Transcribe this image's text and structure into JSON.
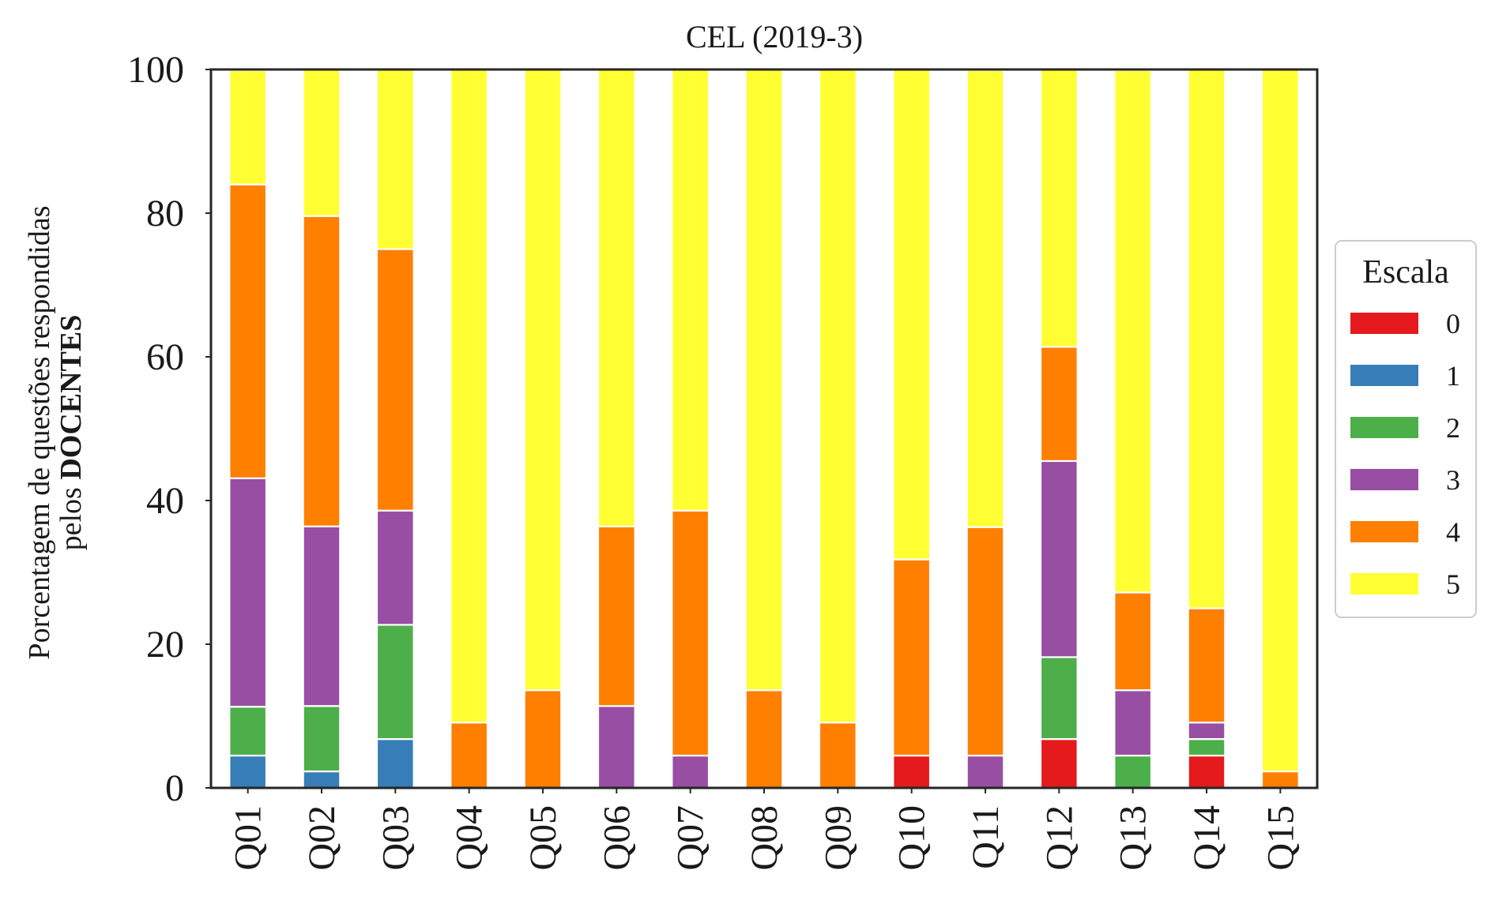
{
  "chart_data": {
    "type": "bar",
    "stacked": true,
    "title": "CEL (2019-3)",
    "xlabel": "",
    "ylabel_line1": "Porcentagem de questões respondidas",
    "ylabel_line2_prefix": "pelos ",
    "ylabel_line2_bold": "DOCENTES",
    "ylim": [
      0,
      100
    ],
    "yticks": [
      "0",
      "20",
      "40",
      "60",
      "80",
      "100"
    ],
    "grid": false,
    "legend_position": "right",
    "categories": [
      "Q01",
      "Q02",
      "Q03",
      "Q04",
      "Q05",
      "Q06",
      "Q07",
      "Q08",
      "Q09",
      "Q10",
      "Q11",
      "Q12",
      "Q13",
      "Q14",
      "Q15"
    ],
    "legend": {
      "title": "Escala"
    },
    "series": [
      {
        "name": "0",
        "color": "#e41a1c",
        "values": [
          0,
          0,
          0,
          0,
          0,
          0,
          0,
          0,
          0,
          4.5,
          0,
          6.8,
          0,
          4.5,
          0
        ]
      },
      {
        "name": "1",
        "color": "#377eb8",
        "values": [
          4.5,
          2.3,
          6.8,
          0,
          0,
          0,
          0,
          0,
          0,
          0,
          0,
          0,
          0,
          0,
          0
        ]
      },
      {
        "name": "2",
        "color": "#4daf4a",
        "values": [
          6.8,
          9.1,
          15.9,
          0,
          0,
          0,
          0,
          0,
          0,
          0,
          0,
          11.4,
          4.5,
          2.3,
          0
        ]
      },
      {
        "name": "3",
        "color": "#984ea3",
        "values": [
          31.8,
          25.0,
          15.9,
          0,
          0,
          11.4,
          4.5,
          0,
          0,
          0,
          4.5,
          27.3,
          9.1,
          2.3,
          0
        ]
      },
      {
        "name": "4",
        "color": "#ff7f00",
        "values": [
          40.9,
          43.2,
          36.4,
          9.1,
          13.6,
          25.0,
          34.1,
          13.6,
          9.1,
          27.3,
          31.8,
          15.9,
          13.6,
          15.9,
          2.3
        ]
      },
      {
        "name": "5",
        "color": "#ffff33",
        "values": [
          15.9,
          20.5,
          25.0,
          90.9,
          86.4,
          63.6,
          61.4,
          86.4,
          90.9,
          68.2,
          63.6,
          38.6,
          72.7,
          75.0,
          97.7
        ]
      }
    ]
  }
}
